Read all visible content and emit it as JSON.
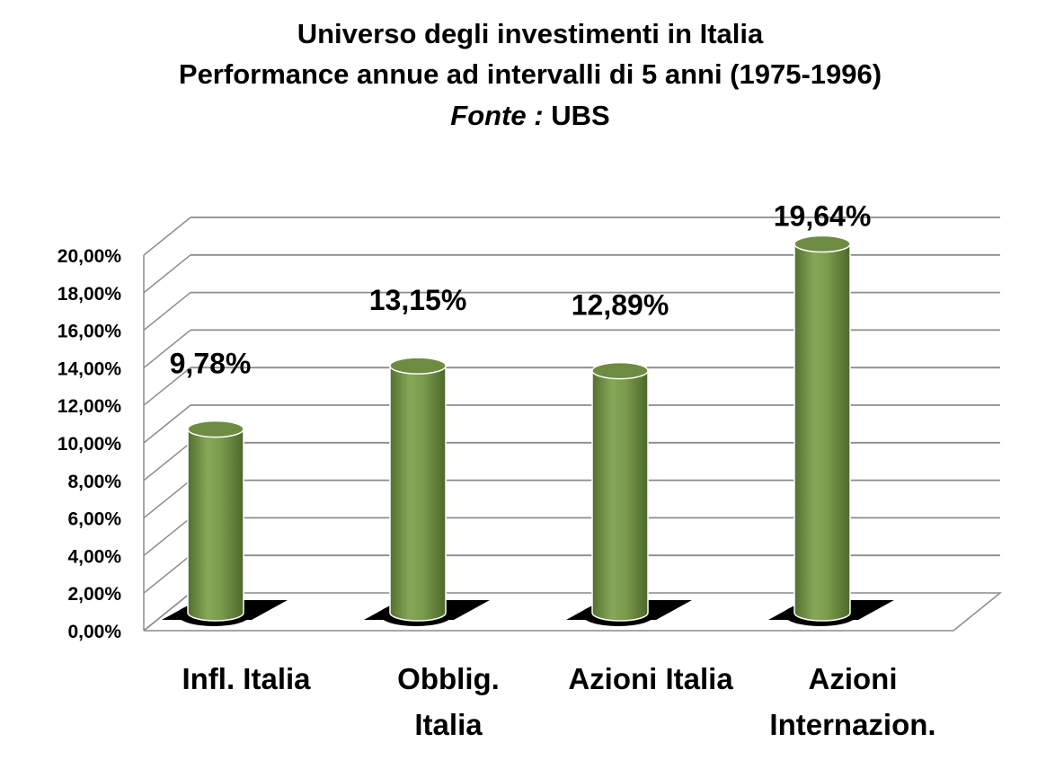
{
  "title": {
    "line1": "Universo degli investimenti  in Italia",
    "line2": "Performance annue  ad intervalli di 5 anni (1975-1996)",
    "source_label": "Fonte :",
    "source_value": " UBS"
  },
  "colors": {
    "bar": "#77964a",
    "bar_dark": "#4f6a2c",
    "bar_top": "#6d8c42",
    "grid": "#8c8c8c",
    "shadow": "#000000"
  },
  "chart_data": {
    "type": "bar",
    "categories": [
      [
        "Infl. Italia"
      ],
      [
        "Obblig.",
        "Italia"
      ],
      [
        "Azioni Italia"
      ],
      [
        "Azioni",
        "Internazion."
      ]
    ],
    "values": [
      9.78,
      13.15,
      12.89,
      19.64
    ],
    "value_labels": [
      "9,78%",
      "13,15%",
      "12,89%",
      "19,64%"
    ],
    "y_ticks": [
      "0,00%",
      "2,00%",
      "4,00%",
      "6,00%",
      "8,00%",
      "10,00%",
      "12,00%",
      "14,00%",
      "16,00%",
      "18,00%",
      "20,00%"
    ],
    "ylim": [
      0,
      20
    ],
    "grid": true,
    "legend": "none"
  }
}
